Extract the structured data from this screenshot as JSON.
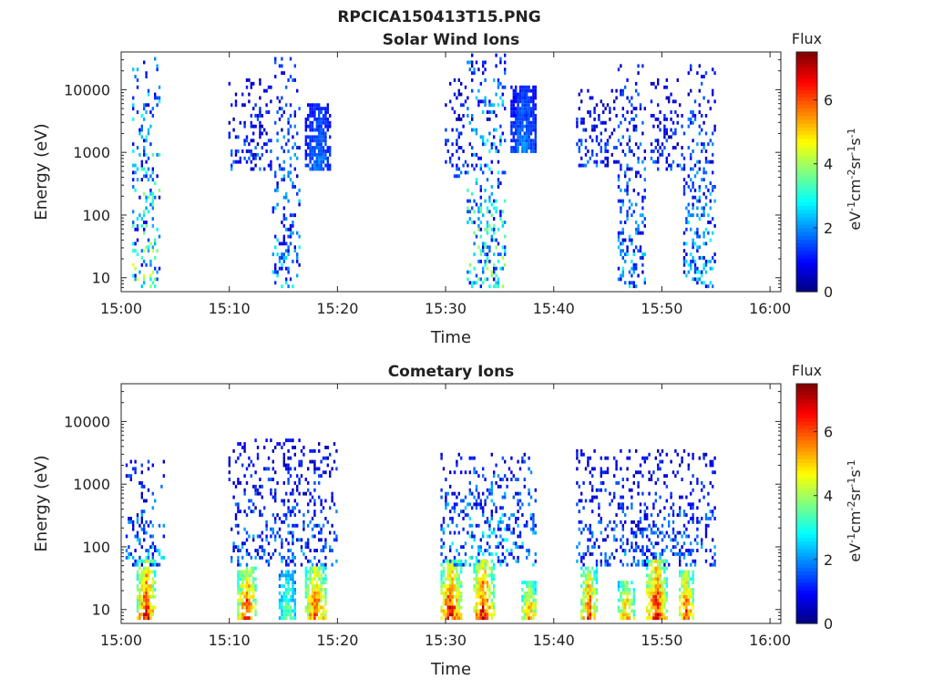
{
  "figure": {
    "title": "RPCICA150413T15.PNG"
  },
  "chart_data": [
    {
      "type": "heatmap",
      "title": "Solar Wind Ions",
      "xlabel": "Time",
      "ylabel": "Energy (eV)",
      "xticks": [
        "15:00",
        "15:10",
        "15:20",
        "15:30",
        "15:40",
        "15:50",
        "16:00"
      ],
      "xlim": [
        "15:00",
        "16:01"
      ],
      "yscale": "log",
      "yticks": [
        10,
        100,
        1000,
        10000
      ],
      "ylim": [
        6,
        40000
      ],
      "colorbar": {
        "label": "Flux",
        "units": "eV-1 cm-2 sr-1 s-1",
        "ticks": [
          0,
          2,
          4,
          6
        ],
        "range": [
          0,
          7.5
        ],
        "colormap": "jet"
      },
      "bursts": [
        {
          "start": "15:01",
          "end": "15:03.6",
          "emin": 7,
          "emax": 35000,
          "peak_flux": 4.8
        },
        {
          "start": "15:10",
          "end": "15:14",
          "emin": 500,
          "emax": 15000,
          "peak_flux": 2.2
        },
        {
          "start": "15:14",
          "end": "15:16.5",
          "emin": 7,
          "emax": 35000,
          "peak_flux": 3.2
        },
        {
          "start": "15:17",
          "end": "15:19.5",
          "emin": 500,
          "emax": 6000,
          "peak_flux": 2.0
        },
        {
          "start": "15:30",
          "end": "15:32",
          "emin": 400,
          "emax": 15000,
          "peak_flux": 2.0
        },
        {
          "start": "15:32",
          "end": "15:35.5",
          "emin": 7,
          "emax": 40000,
          "peak_flux": 4.5
        },
        {
          "start": "15:36",
          "end": "15:38.5",
          "emin": 1000,
          "emax": 12000,
          "peak_flux": 2.0
        },
        {
          "start": "15:42",
          "end": "15:46",
          "emin": 600,
          "emax": 10000,
          "peak_flux": 2.2
        },
        {
          "start": "15:46",
          "end": "15:48.5",
          "emin": 7,
          "emax": 25000,
          "peak_flux": 3.0
        },
        {
          "start": "15:49",
          "end": "15:52",
          "emin": 500,
          "emax": 15000,
          "peak_flux": 2.0
        },
        {
          "start": "15:52",
          "end": "15:55",
          "emin": 7,
          "emax": 25000,
          "peak_flux": 3.2
        }
      ]
    },
    {
      "type": "heatmap",
      "title": "Cometary Ions",
      "xlabel": "Time",
      "ylabel": "Energy (eV)",
      "xticks": [
        "15:00",
        "15:10",
        "15:20",
        "15:30",
        "15:40",
        "15:50",
        "16:00"
      ],
      "xlim": [
        "15:00",
        "16:01"
      ],
      "yscale": "log",
      "yticks": [
        10,
        100,
        1000,
        10000
      ],
      "ylim": [
        6,
        40000
      ],
      "colorbar": {
        "label": "Flux",
        "units": "eV-1 cm-2 sr-1 s-1",
        "ticks": [
          0,
          2,
          4,
          6
        ],
        "range": [
          0,
          7.5
        ],
        "colormap": "jet"
      },
      "bursts": [
        {
          "start": "15:01.5",
          "end": "15:03.2",
          "emin": 7,
          "emax": 60,
          "peak_flux": 7.0
        },
        {
          "start": "15:00.5",
          "end": "15:04",
          "emin": 50,
          "emax": 2500,
          "peak_flux": 3.0
        },
        {
          "start": "15:10.8",
          "end": "15:12.5",
          "emin": 7,
          "emax": 50,
          "peak_flux": 6.8
        },
        {
          "start": "15:10",
          "end": "15:20",
          "emin": 50,
          "emax": 5000,
          "peak_flux": 2.5
        },
        {
          "start": "15:14.5",
          "end": "15:16.2",
          "emin": 7,
          "emax": 40,
          "peak_flux": 4.0
        },
        {
          "start": "15:17",
          "end": "15:19",
          "emin": 7,
          "emax": 50,
          "peak_flux": 6.5
        },
        {
          "start": "15:29.5",
          "end": "15:31.5",
          "emin": 7,
          "emax": 60,
          "peak_flux": 7.0
        },
        {
          "start": "15:29.5",
          "end": "15:38.5",
          "emin": 50,
          "emax": 3000,
          "peak_flux": 3.5
        },
        {
          "start": "15:32.5",
          "end": "15:34.5",
          "emin": 7,
          "emax": 60,
          "peak_flux": 7.0
        },
        {
          "start": "15:37",
          "end": "15:38.5",
          "emin": 7,
          "emax": 30,
          "peak_flux": 6.0
        },
        {
          "start": "15:42.5",
          "end": "15:44",
          "emin": 7,
          "emax": 50,
          "peak_flux": 6.5
        },
        {
          "start": "15:42",
          "end": "15:55",
          "emin": 50,
          "emax": 3500,
          "peak_flux": 2.5
        },
        {
          "start": "15:46",
          "end": "15:47.5",
          "emin": 7,
          "emax": 30,
          "peak_flux": 6.0
        },
        {
          "start": "15:48.5",
          "end": "15:50.5",
          "emin": 7,
          "emax": 60,
          "peak_flux": 7.0
        },
        {
          "start": "15:51.5",
          "end": "15:53",
          "emin": 7,
          "emax": 40,
          "peak_flux": 6.5
        }
      ]
    }
  ]
}
